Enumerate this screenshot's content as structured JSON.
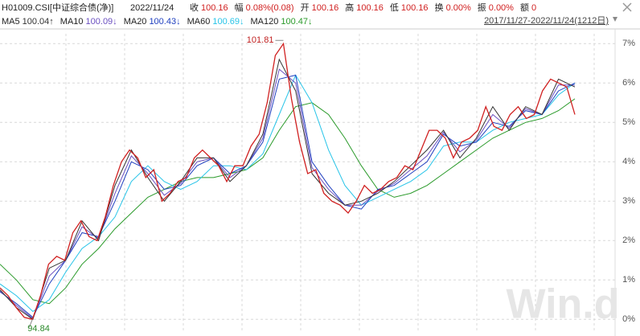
{
  "header": {
    "code": "H01009.CSI[中证综合债(净)]",
    "date": "2022/11/24",
    "quotes": [
      {
        "label": "收",
        "value": "100.16"
      },
      {
        "label": "幅",
        "value": "0.08%(0.08)"
      },
      {
        "label": "开",
        "value": "100.16"
      },
      {
        "label": "高",
        "value": "100.16"
      },
      {
        "label": "低",
        "value": "100.16"
      },
      {
        "label": "换",
        "value": "0.00%"
      },
      {
        "label": "振",
        "value": "0.00%"
      },
      {
        "label": "额",
        "value": "0"
      }
    ],
    "range": "2017/11/27-2022/11/24(1212日)"
  },
  "chart_data": {
    "type": "line",
    "price": [
      0.8,
      0.6,
      0.3,
      0.05,
      0.0,
      0.6,
      1.4,
      1.6,
      1.5,
      2.2,
      2.5,
      2.1,
      2.0,
      2.6,
      3.4,
      4.0,
      4.3,
      4.1,
      3.6,
      3.8,
      3.0,
      3.2,
      3.5,
      3.6,
      4.1,
      4.3,
      4.1,
      3.9,
      3.5,
      3.9,
      3.9,
      4.4,
      4.7,
      5.5,
      6.7,
      7.0,
      5.6,
      4.5,
      3.7,
      3.8,
      3.2,
      3.0,
      2.9,
      2.7,
      3.0,
      3.4,
      3.2,
      3.3,
      3.5,
      3.6,
      3.9,
      3.8,
      4.3,
      4.8,
      4.8,
      4.6,
      4.1,
      4.5,
      4.6,
      4.8,
      5.4,
      4.9,
      4.8,
      5.2,
      5.4,
      5.1,
      5.2,
      5.8,
      6.1,
      6.0,
      5.9,
      5.2
    ],
    "price_color": "#d02020",
    "series": [
      {
        "name": "MA5",
        "last": "100.04↑",
        "color": "#333333",
        "values": [
          0.75,
          0.3,
          0.0,
          1.3,
          1.5,
          2.5,
          2.0,
          3.4,
          4.3,
          3.6,
          3.0,
          3.5,
          4.1,
          4.1,
          3.5,
          3.9,
          4.7,
          6.6,
          5.8,
          3.7,
          3.2,
          2.9,
          3.0,
          3.2,
          3.5,
          3.9,
          4.3,
          4.8,
          4.1,
          4.6,
          5.4,
          4.8,
          5.4,
          5.2,
          6.1,
          5.9
        ]
      },
      {
        "name": "MA10",
        "last": "100.09↓",
        "color": "#6a4fc0",
        "values": [
          0.72,
          0.35,
          0.02,
          1.1,
          1.5,
          2.35,
          2.05,
          3.2,
          4.15,
          3.7,
          3.15,
          3.45,
          4.0,
          4.1,
          3.6,
          3.9,
          4.6,
          6.35,
          6.0,
          3.85,
          3.3,
          2.9,
          2.9,
          3.25,
          3.45,
          3.8,
          4.15,
          4.75,
          4.25,
          4.55,
          5.2,
          4.85,
          5.35,
          5.2,
          5.95,
          5.95
        ]
      },
      {
        "name": "MA20",
        "last": "100.43↓",
        "color": "#1f3fbf",
        "values": [
          0.7,
          0.4,
          0.05,
          0.9,
          1.5,
          2.2,
          2.1,
          3.0,
          4.0,
          3.8,
          3.3,
          3.4,
          3.9,
          4.1,
          3.7,
          3.9,
          4.5,
          6.1,
          6.2,
          4.0,
          3.4,
          2.9,
          2.8,
          3.3,
          3.4,
          3.7,
          4.0,
          4.7,
          4.4,
          4.5,
          5.0,
          4.9,
          5.3,
          5.2,
          5.8,
          6.0
        ]
      },
      {
        "name": "MA60",
        "last": "100.69↓",
        "color": "#27c4e8",
        "values": [
          0.9,
          0.6,
          0.2,
          0.5,
          1.2,
          1.8,
          2.1,
          2.6,
          3.5,
          3.9,
          3.5,
          3.3,
          3.5,
          3.9,
          3.9,
          3.8,
          4.2,
          5.2,
          6.2,
          5.5,
          4.3,
          3.4,
          2.9,
          3.1,
          3.3,
          3.5,
          3.8,
          4.4,
          4.5,
          4.5,
          4.8,
          5.0,
          5.1,
          5.2,
          5.7,
          6.0
        ]
      },
      {
        "name": "MA120",
        "last": "100.47↓",
        "color": "#2a9a2a",
        "values": [
          1.4,
          1.0,
          0.5,
          0.4,
          0.8,
          1.4,
          1.8,
          2.3,
          2.7,
          3.1,
          3.3,
          3.5,
          3.6,
          3.6,
          3.7,
          3.8,
          4.1,
          4.8,
          5.4,
          5.5,
          5.2,
          4.6,
          3.9,
          3.3,
          3.1,
          3.2,
          3.4,
          3.7,
          4.0,
          4.3,
          4.6,
          4.8,
          5.0,
          5.1,
          5.3,
          5.6
        ]
      }
    ],
    "ylim": [
      -0.3,
      7.25
    ],
    "yticks": [
      {
        "value": 0,
        "label": "0%"
      },
      {
        "value": 1,
        "label": "1%"
      },
      {
        "value": 2,
        "label": "2%"
      },
      {
        "value": 3,
        "label": "3%"
      },
      {
        "value": 4,
        "label": "4%"
      },
      {
        "value": 5,
        "label": "5%"
      },
      {
        "value": 6,
        "label": "6%"
      },
      {
        "value": 7,
        "label": "7%"
      }
    ],
    "grid": true,
    "max_label": "101.81",
    "min_label": "94.84"
  },
  "watermark": "Win.d"
}
